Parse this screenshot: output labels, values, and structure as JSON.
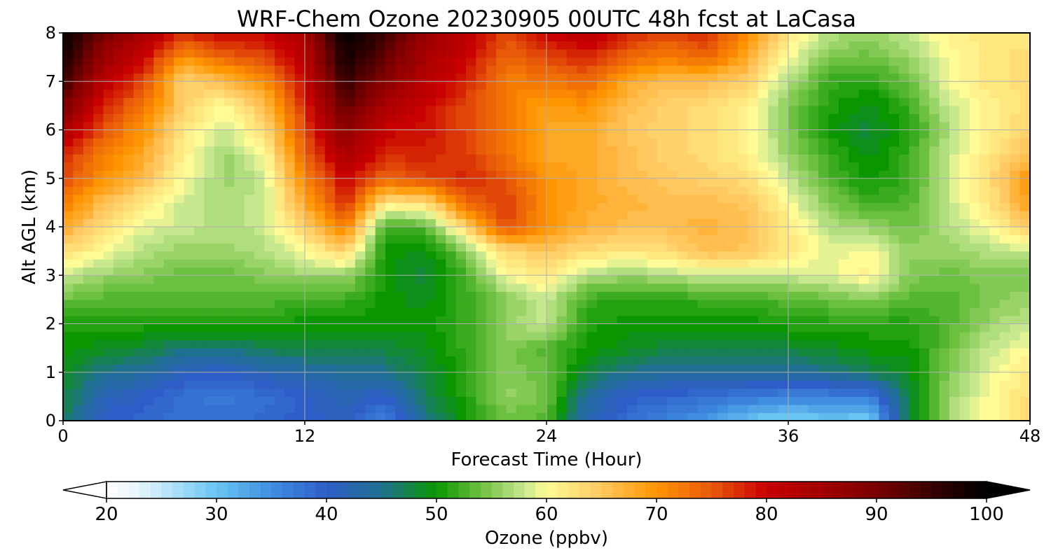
{
  "chart_data": {
    "type": "heatmap",
    "title": "WRF-Chem Ozone  20230905 00UTC 48h fcst at LaCasa",
    "xlabel": "Forecast Time (Hour)",
    "ylabel": "Alt AGL (km)",
    "xlim": [
      0,
      48
    ],
    "ylim": [
      0,
      8
    ],
    "x_ticks": [
      "0",
      "12",
      "24",
      "36",
      "48"
    ],
    "y_ticks": [
      "0",
      "1",
      "2",
      "3",
      "4",
      "5",
      "6",
      "7",
      "8"
    ],
    "grid": true,
    "x": [
      0,
      2,
      4,
      6,
      8,
      10,
      12,
      14,
      16,
      18,
      20,
      22,
      24,
      26,
      28,
      30,
      32,
      34,
      36,
      38,
      40,
      42,
      44,
      46,
      48
    ],
    "y": [
      0,
      0.5,
      1,
      1.5,
      2,
      2.5,
      3,
      3.5,
      4,
      4.5,
      5,
      5.5,
      6,
      6.5,
      7,
      7.5,
      8
    ],
    "z": [
      [
        47,
        40,
        39,
        38,
        38,
        39,
        40,
        41,
        36,
        45,
        50,
        54,
        53,
        42,
        38,
        36,
        34,
        30,
        28,
        30,
        29,
        48,
        56,
        60,
        64
      ],
      [
        48,
        42,
        40,
        38,
        37,
        38,
        40,
        42,
        40,
        47,
        51,
        56,
        54,
        44,
        40,
        39,
        38,
        37,
        36,
        36,
        36,
        48,
        56,
        60,
        63
      ],
      [
        49,
        45,
        44,
        41,
        40,
        42,
        43,
        44,
        45,
        48,
        51,
        55,
        54,
        48,
        45,
        44,
        44,
        44,
        44,
        45,
        47,
        49,
        55,
        59,
        62
      ],
      [
        50,
        49,
        48,
        46,
        46,
        47,
        48,
        48,
        48,
        49,
        52,
        55,
        53,
        50,
        49,
        48,
        48,
        48,
        48,
        49,
        50,
        50,
        54,
        58,
        60
      ],
      [
        51,
        51,
        51,
        51,
        51,
        51,
        50,
        50,
        50,
        50,
        52,
        56,
        58,
        51,
        50,
        50,
        50,
        50,
        51,
        51,
        51,
        51,
        53,
        56,
        58
      ],
      [
        54,
        53,
        53,
        53,
        53,
        53,
        52,
        52,
        50,
        49,
        52,
        55,
        58,
        52,
        51,
        51,
        52,
        52,
        53,
        54,
        55,
        53,
        53,
        55,
        56
      ],
      [
        58,
        56,
        55,
        54,
        54,
        55,
        56,
        56,
        50,
        48,
        52,
        60,
        62,
        57,
        56,
        57,
        58,
        58,
        58,
        59,
        61,
        55,
        54,
        55,
        55
      ],
      [
        63,
        60,
        57,
        56,
        56,
        57,
        60,
        64,
        50,
        49,
        55,
        63,
        65,
        63,
        62,
        63,
        66,
        65,
        62,
        59,
        60,
        56,
        56,
        57,
        58
      ],
      [
        68,
        63,
        59,
        58,
        57,
        58,
        64,
        72,
        52,
        53,
        64,
        76,
        70,
        67,
        66,
        66,
        67,
        66,
        62,
        57,
        56,
        54,
        57,
        60,
        65
      ],
      [
        72,
        66,
        62,
        58,
        57,
        58,
        68,
        78,
        62,
        63,
        74,
        77,
        70,
        68,
        67,
        66,
        66,
        65,
        60,
        55,
        52,
        53,
        58,
        62,
        69
      ],
      [
        76,
        70,
        66,
        60,
        56,
        58,
        71,
        80,
        74,
        76,
        78,
        75,
        70,
        68,
        66,
        65,
        64,
        63,
        58,
        53,
        50,
        52,
        58,
        63,
        70
      ],
      [
        78,
        72,
        68,
        61,
        56,
        60,
        74,
        84,
        78,
        78,
        77,
        73,
        68,
        68,
        66,
        64,
        63,
        61,
        56,
        52,
        49,
        52,
        58,
        62,
        66
      ],
      [
        84,
        75,
        70,
        62,
        58,
        63,
        76,
        88,
        80,
        79,
        76,
        72,
        68,
        68,
        65,
        64,
        63,
        61,
        55,
        50,
        48,
        51,
        57,
        61,
        64
      ],
      [
        90,
        78,
        73,
        64,
        60,
        66,
        78,
        92,
        84,
        80,
        76,
        72,
        69,
        70,
        66,
        64,
        63,
        61,
        55,
        51,
        49,
        52,
        58,
        61,
        63
      ],
      [
        95,
        82,
        76,
        64,
        66,
        70,
        80,
        96,
        88,
        82,
        78,
        72,
        72,
        74,
        68,
        66,
        66,
        64,
        57,
        52,
        51,
        54,
        60,
        62,
        63
      ],
      [
        98,
        86,
        80,
        70,
        74,
        76,
        82,
        98,
        92,
        84,
        80,
        74,
        76,
        78,
        74,
        72,
        74,
        68,
        60,
        55,
        54,
        56,
        60,
        62,
        63
      ],
      [
        100,
        90,
        84,
        78,
        80,
        80,
        84,
        100,
        95,
        86,
        82,
        76,
        80,
        82,
        78,
        76,
        78,
        70,
        62,
        57,
        56,
        58,
        61,
        62,
        62
      ]
    ],
    "colorbar": {
      "label": "Ozone  (ppbv)",
      "min": 20,
      "max": 100,
      "extend": "both",
      "ticks": [
        "20",
        "30",
        "40",
        "50",
        "60",
        "70",
        "80",
        "90",
        "100"
      ],
      "stops": [
        {
          "v": 20,
          "c": "#ffffff"
        },
        {
          "v": 23,
          "c": "#e6f4fc"
        },
        {
          "v": 30,
          "c": "#69c5f2"
        },
        {
          "v": 35,
          "c": "#3f8ee0"
        },
        {
          "v": 40,
          "c": "#2f5dc8"
        },
        {
          "v": 45,
          "c": "#1f7090"
        },
        {
          "v": 50,
          "c": "#0a9600"
        },
        {
          "v": 54,
          "c": "#6cc040"
        },
        {
          "v": 58,
          "c": "#c8e890"
        },
        {
          "v": 60,
          "c": "#fffb96"
        },
        {
          "v": 65,
          "c": "#ffc860"
        },
        {
          "v": 70,
          "c": "#fe9400"
        },
        {
          "v": 75,
          "c": "#e85a0a"
        },
        {
          "v": 80,
          "c": "#c80000"
        },
        {
          "v": 85,
          "c": "#a20000"
        },
        {
          "v": 90,
          "c": "#7a0000"
        },
        {
          "v": 95,
          "c": "#380000"
        },
        {
          "v": 100,
          "c": "#000000"
        }
      ]
    }
  }
}
